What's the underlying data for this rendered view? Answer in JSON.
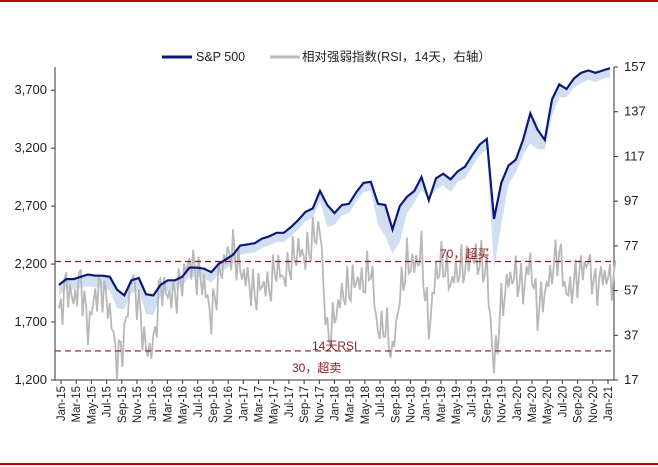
{
  "chart_data": {
    "type": "line",
    "title": "",
    "legend": [
      {
        "name": "S&P 500",
        "color": "#0b1a7a"
      },
      {
        "name": "相对强弱指数(RSI，14天，右轴）",
        "color": "#bdbdbd"
      }
    ],
    "y_left": {
      "ticks": [
        "3,700",
        "3,200",
        "2,700",
        "2,200",
        "1,700",
        "1,200"
      ],
      "range": [
        1200,
        3900
      ]
    },
    "y_right": {
      "ticks": [
        "157",
        "137",
        "117",
        "97",
        "77",
        "57",
        "37",
        "17"
      ],
      "range": [
        17,
        157
      ]
    },
    "x_ticks": [
      "Jan-15",
      "Mar-15",
      "May-15",
      "Jul-15",
      "Sep-15",
      "Nov-15",
      "Jan-16",
      "Mar-16",
      "May-16",
      "Jul-16",
      "Sep-16",
      "Nov-16",
      "Jan-17",
      "Mar-17",
      "May-17",
      "Jul-17",
      "Sep-17",
      "Nov-17",
      "Jan-18",
      "Mar-18",
      "May-18",
      "Jul-18",
      "Sep-18",
      "Nov-18",
      "Jan-19",
      "Mar-19",
      "May-19",
      "Jul-19",
      "Sep-19",
      "Nov-19",
      "Jan-20",
      "Mar-20",
      "May-20",
      "Jul-20",
      "Sep-20",
      "Nov-20",
      "Jan-21"
    ],
    "series": [
      {
        "name": "S&P 500",
        "axis": "left",
        "x_month_index": [
          0,
          1,
          2,
          3,
          4,
          5,
          6,
          7,
          8,
          9,
          10,
          11,
          12,
          13,
          14,
          15,
          16,
          17,
          18,
          19,
          20,
          21,
          22,
          23,
          24,
          25,
          26,
          27,
          28,
          29,
          30,
          31,
          32,
          33,
          34,
          35,
          36,
          37,
          38,
          39,
          40,
          41,
          42,
          43,
          44,
          45,
          46,
          47,
          48,
          49,
          50,
          51,
          52,
          53,
          54,
          55,
          56,
          57,
          58,
          59,
          60,
          61,
          62,
          63,
          64,
          65,
          66,
          67,
          68,
          69,
          70,
          71,
          72,
          73,
          74,
          75,
          76
        ],
        "values": [
          2020,
          2070,
          2070,
          2090,
          2110,
          2100,
          2100,
          2090,
          1980,
          1930,
          2060,
          2080,
          1940,
          1930,
          2020,
          2060,
          2060,
          2090,
          2170,
          2170,
          2160,
          2130,
          2200,
          2240,
          2280,
          2360,
          2370,
          2380,
          2420,
          2440,
          2470,
          2470,
          2520,
          2580,
          2650,
          2680,
          2830,
          2710,
          2640,
          2710,
          2720,
          2820,
          2900,
          2910,
          2720,
          2710,
          2500,
          2700,
          2780,
          2830,
          2950,
          2750,
          2940,
          2980,
          2930,
          3000,
          3040,
          3140,
          3230,
          3280,
          2590,
          2900,
          3050,
          3100,
          3270,
          3500,
          3360,
          3270,
          3620,
          3750,
          3710,
          3800,
          3850,
          3870,
          3850,
          3870,
          3890
        ],
        "min_values": [
          1990,
          2040,
          2040,
          2060,
          2070,
          2060,
          2050,
          2030,
          1880,
          1870,
          2010,
          2030,
          1830,
          1820,
          1980,
          2030,
          2040,
          2070,
          2150,
          2150,
          2140,
          2100,
          2180,
          2220,
          2260,
          2340,
          2350,
          2360,
          2400,
          2420,
          2450,
          2450,
          2500,
          2560,
          2630,
          2660,
          2800,
          2580,
          2600,
          2680,
          2700,
          2800,
          2880,
          2890,
          2600,
          2500,
          2350,
          2450,
          2700,
          2790,
          2900,
          2820,
          2900,
          2940,
          2880,
          2970,
          3000,
          3100,
          3200,
          3250,
          2220,
          2600,
          2950,
          3050,
          3200,
          3300,
          3250,
          3250,
          3540,
          3700,
          3700,
          3780,
          3820,
          3850,
          3830,
          3860,
          3870
        ]
      },
      {
        "name": "相对强弱指数(RSI，14天，右轴）",
        "axis": "right",
        "x_month_index": [
          0,
          1,
          2,
          3,
          4,
          5,
          6,
          7,
          8,
          9,
          10,
          11,
          12,
          13,
          14,
          15,
          16,
          17,
          18,
          19,
          20,
          21,
          22,
          23,
          24,
          25,
          26,
          27,
          28,
          29,
          30,
          31,
          32,
          33,
          34,
          35,
          36,
          37,
          38,
          39,
          40,
          41,
          42,
          43,
          44,
          45,
          46,
          47,
          48,
          49,
          50,
          51,
          52,
          53,
          54,
          55,
          56,
          57,
          58,
          59,
          60,
          61,
          62,
          63,
          64,
          65,
          66,
          67,
          68,
          69,
          70,
          71,
          72,
          73,
          74,
          75,
          76
        ],
        "values": [
          45,
          60,
          52,
          62,
          40,
          55,
          58,
          48,
          25,
          36,
          64,
          50,
          30,
          32,
          60,
          55,
          55,
          62,
          70,
          65,
          60,
          45,
          62,
          72,
          75,
          66,
          62,
          55,
          60,
          58,
          68,
          62,
          70,
          75,
          72,
          80,
          85,
          35,
          45,
          55,
          58,
          62,
          60,
          68,
          38,
          42,
          28,
          55,
          70,
          68,
          74,
          40,
          65,
          70,
          60,
          66,
          68,
          72,
          70,
          66,
          22,
          50,
          62,
          64,
          58,
          70,
          48,
          56,
          66,
          75,
          55,
          60,
          66,
          70,
          58,
          64,
          62
        ]
      }
    ],
    "reference_lines": [
      {
        "value": 70,
        "axis": "right",
        "label": "70，超买"
      },
      {
        "value": 30,
        "axis": "right",
        "label": "30，超卖"
      }
    ],
    "annotations": [
      "14天RSI"
    ]
  }
}
